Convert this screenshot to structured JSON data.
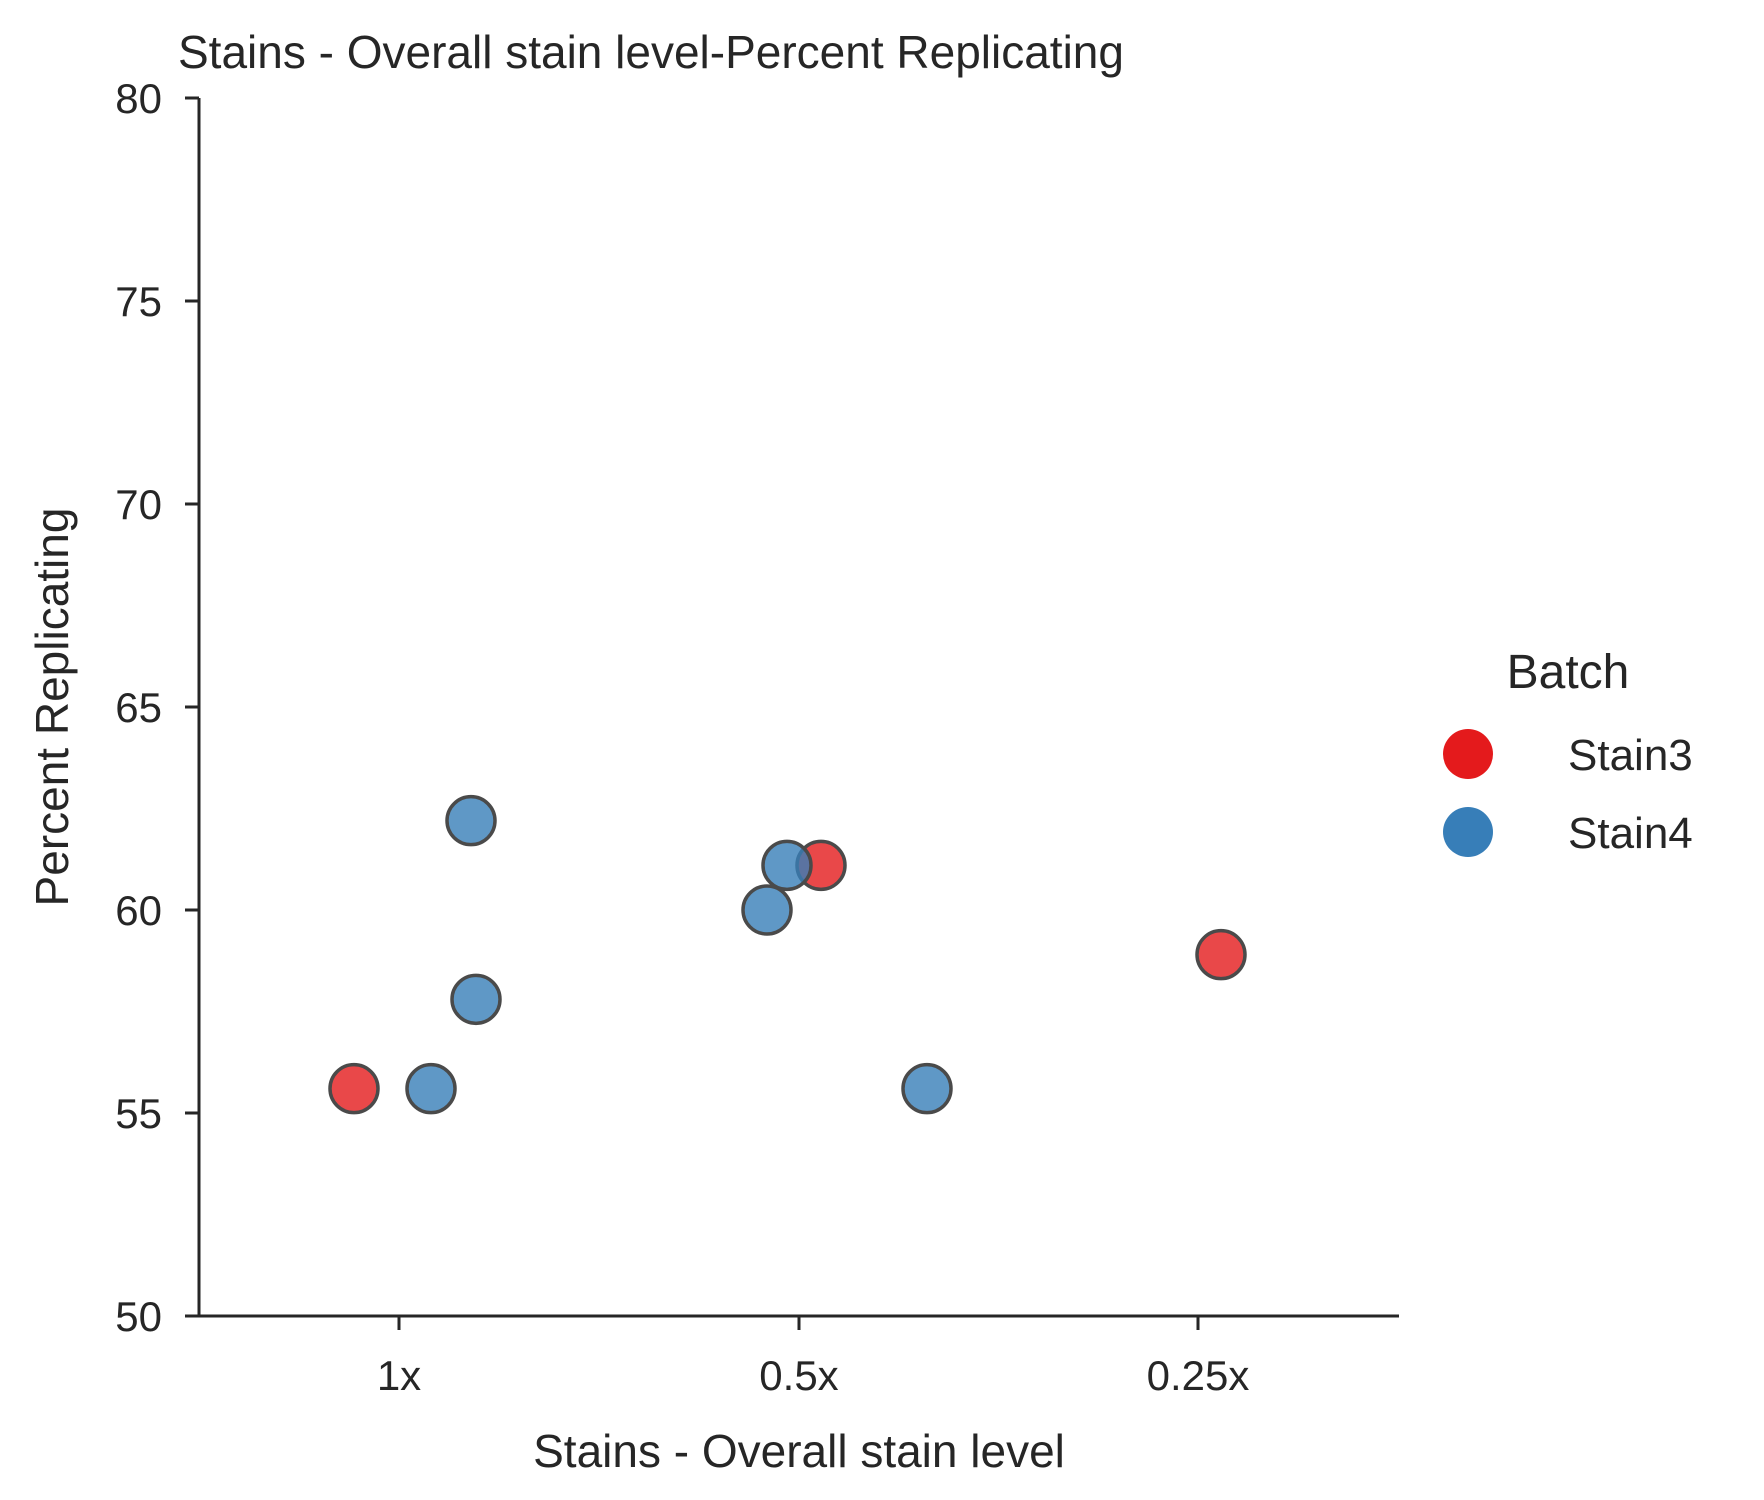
{
  "chart_data": {
    "type": "scatter",
    "title": "Stains - Overall stain level-Percent Replicating",
    "xlabel": "Stains - Overall stain level",
    "ylabel": "Percent Replicating",
    "categories": [
      "1x",
      "0.5x",
      "0.25x"
    ],
    "ylim": [
      50,
      80
    ],
    "yticks": [
      "50",
      "55",
      "60",
      "65",
      "70",
      "75",
      "80"
    ],
    "grid": false,
    "jitter": true,
    "legend": {
      "title": "Batch",
      "placement": "right"
    },
    "series": [
      {
        "name": "Stain3",
        "color": "#e41a1c",
        "points": [
          {
            "category": "1x",
            "y": 55.6
          },
          {
            "category": "0.5x",
            "y": 61.1
          },
          {
            "category": "0.25x",
            "y": 58.9
          }
        ]
      },
      {
        "name": "Stain4",
        "color": "#377eb8",
        "points": [
          {
            "category": "1x",
            "y": 62.2
          },
          {
            "category": "1x",
            "y": 57.8
          },
          {
            "category": "1x",
            "y": 55.6
          },
          {
            "category": "0.5x",
            "y": 61.1
          },
          {
            "category": "0.5x",
            "y": 60.0
          },
          {
            "category": "0.5x",
            "y": 55.6
          }
        ]
      }
    ]
  }
}
